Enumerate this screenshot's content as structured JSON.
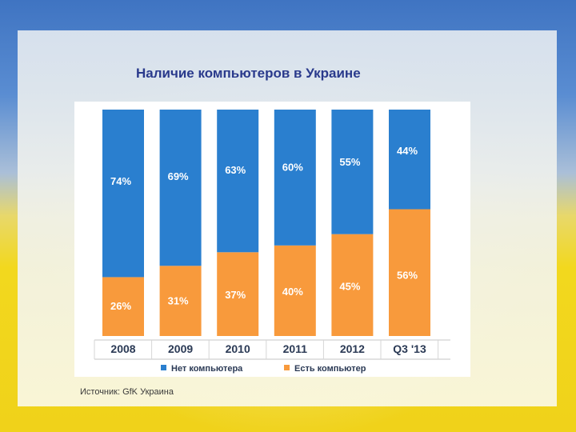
{
  "slide": {
    "title": "Наличие компьютеров в Украине",
    "source": "Источник: GfK Украина"
  },
  "chart_data": {
    "type": "bar",
    "stacked": true,
    "normalized_percent": true,
    "title": "Наличие компьютеров в Украине",
    "categories": [
      "2008",
      "2009",
      "2010",
      "2011",
      "2012",
      "Q3 '13"
    ],
    "series": [
      {
        "name": "Нет компьютера",
        "color": "#2a7fcf",
        "values": [
          74,
          69,
          63,
          60,
          55,
          44
        ],
        "labels": [
          "74%",
          "69%",
          "63%",
          "60%",
          "55%",
          "44%"
        ]
      },
      {
        "name": "Есть компьютер",
        "color": "#f89a3c",
        "values": [
          26,
          31,
          37,
          40,
          45,
          56
        ],
        "labels": [
          "26%",
          "31%",
          "37%",
          "40%",
          "45%",
          "56%"
        ]
      }
    ],
    "ylim": [
      0,
      100
    ],
    "legend_position": "bottom"
  }
}
